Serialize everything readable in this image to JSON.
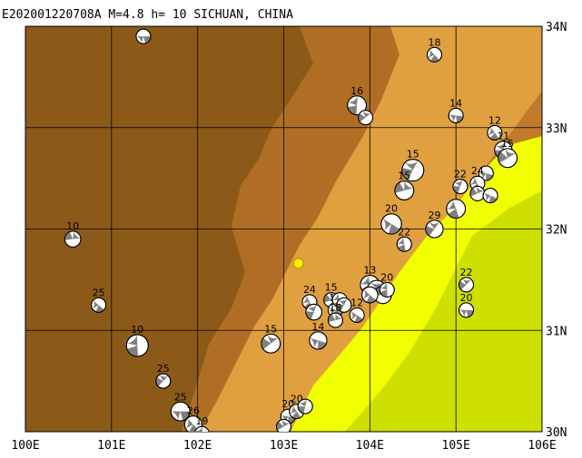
{
  "map": {
    "title": "E202001220708A M=4.8 h= 10 SICHUAN, CHINA",
    "lon_range": [
      100,
      106
    ],
    "lat_range": [
      30,
      34
    ],
    "x_ticks": [
      {
        "lon": 100,
        "label": "100E"
      },
      {
        "lon": 101,
        "label": "101E"
      },
      {
        "lon": 102,
        "label": "102E"
      },
      {
        "lon": 103,
        "label": "103E"
      },
      {
        "lon": 104,
        "label": "104E"
      },
      {
        "lon": 105,
        "label": "105E"
      },
      {
        "lon": 106,
        "label": "106E"
      }
    ],
    "y_ticks": [
      {
        "lat": 34,
        "label": "34N"
      },
      {
        "lat": 33,
        "label": "33N"
      },
      {
        "lat": 32,
        "label": "32N"
      },
      {
        "lat": 31,
        "label": "31N"
      },
      {
        "lat": 30,
        "label": "30N"
      }
    ],
    "colors": {
      "dark_terrain": "#8c5a18",
      "mid_terrain": "#c07a2a",
      "light_terrain": "#e0a040",
      "plain": "#f2ff00",
      "basin": "#cde000",
      "event_marker": "#ffee00",
      "mechanism_fill": "#808080"
    },
    "epicenter": {
      "lon": 103.17,
      "lat": 31.66
    },
    "mechanisms": [
      {
        "lon": 101.37,
        "lat": 33.9,
        "depth": "",
        "size": 1
      },
      {
        "lon": 104.75,
        "lat": 33.72,
        "depth": "18",
        "size": 1
      },
      {
        "lon": 103.85,
        "lat": 33.22,
        "depth": "16",
        "size": 1.3
      },
      {
        "lon": 103.95,
        "lat": 33.1,
        "depth": "",
        "size": 1
      },
      {
        "lon": 105.0,
        "lat": 33.12,
        "depth": "14",
        "size": 1
      },
      {
        "lon": 105.45,
        "lat": 32.95,
        "depth": "12",
        "size": 1
      },
      {
        "lon": 105.55,
        "lat": 32.78,
        "depth": "11",
        "size": 1.2
      },
      {
        "lon": 105.6,
        "lat": 32.7,
        "depth": "15",
        "size": 1.3
      },
      {
        "lon": 105.35,
        "lat": 32.55,
        "depth": "",
        "size": 1
      },
      {
        "lon": 105.25,
        "lat": 32.45,
        "depth": "24",
        "size": 1
      },
      {
        "lon": 105.05,
        "lat": 32.42,
        "depth": "22",
        "size": 1
      },
      {
        "lon": 105.25,
        "lat": 32.35,
        "depth": "",
        "size": 1
      },
      {
        "lon": 105.4,
        "lat": 32.33,
        "depth": "",
        "size": 1
      },
      {
        "lon": 105.0,
        "lat": 32.2,
        "depth": "",
        "size": 1.3
      },
      {
        "lon": 104.5,
        "lat": 32.58,
        "depth": "15",
        "size": 1.5
      },
      {
        "lon": 104.4,
        "lat": 32.38,
        "depth": "15",
        "size": 1.3
      },
      {
        "lon": 104.25,
        "lat": 32.05,
        "depth": "20",
        "size": 1.4
      },
      {
        "lon": 104.4,
        "lat": 31.85,
        "depth": "22",
        "size": 1
      },
      {
        "lon": 104.75,
        "lat": 32.0,
        "depth": "29",
        "size": 1.2
      },
      {
        "lon": 100.55,
        "lat": 31.9,
        "depth": "10",
        "size": 1.1
      },
      {
        "lon": 100.85,
        "lat": 31.25,
        "depth": "25",
        "size": 1
      },
      {
        "lon": 101.3,
        "lat": 30.85,
        "depth": "10",
        "size": 1.5
      },
      {
        "lon": 101.6,
        "lat": 30.5,
        "depth": "25",
        "size": 1
      },
      {
        "lon": 101.8,
        "lat": 30.2,
        "depth": "25",
        "size": 1.3
      },
      {
        "lon": 101.95,
        "lat": 30.07,
        "depth": "26",
        "size": 1.2
      },
      {
        "lon": 102.05,
        "lat": 29.98,
        "depth": "19",
        "size": 1
      },
      {
        "lon": 102.85,
        "lat": 30.87,
        "depth": "15",
        "size": 1.3
      },
      {
        "lon": 103.05,
        "lat": 30.15,
        "depth": "20",
        "size": 1
      },
      {
        "lon": 103.15,
        "lat": 30.2,
        "depth": "20",
        "size": 1
      },
      {
        "lon": 103.25,
        "lat": 30.25,
        "depth": "",
        "size": 1
      },
      {
        "lon": 103.0,
        "lat": 30.05,
        "depth": "",
        "size": 1
      },
      {
        "lon": 103.4,
        "lat": 30.9,
        "depth": "14",
        "size": 1.2
      },
      {
        "lon": 103.3,
        "lat": 31.28,
        "depth": "24",
        "size": 1
      },
      {
        "lon": 103.35,
        "lat": 31.18,
        "depth": "",
        "size": 1.1
      },
      {
        "lon": 103.55,
        "lat": 31.3,
        "depth": "15",
        "size": 1
      },
      {
        "lon": 103.6,
        "lat": 31.2,
        "depth": "15",
        "size": 1
      },
      {
        "lon": 103.65,
        "lat": 31.3,
        "depth": "",
        "size": 1
      },
      {
        "lon": 103.7,
        "lat": 31.25,
        "depth": "",
        "size": 1
      },
      {
        "lon": 103.6,
        "lat": 31.1,
        "depth": "18",
        "size": 1
      },
      {
        "lon": 103.85,
        "lat": 31.15,
        "depth": "12",
        "size": 1
      },
      {
        "lon": 104.0,
        "lat": 31.45,
        "depth": "13",
        "size": 1.3
      },
      {
        "lon": 104.08,
        "lat": 31.4,
        "depth": "",
        "size": 1.3
      },
      {
        "lon": 104.15,
        "lat": 31.35,
        "depth": "",
        "size": 1.2
      },
      {
        "lon": 104.0,
        "lat": 31.35,
        "depth": "",
        "size": 1.1
      },
      {
        "lon": 104.2,
        "lat": 31.4,
        "depth": "20",
        "size": 1
      },
      {
        "lon": 105.12,
        "lat": 31.45,
        "depth": "22",
        "size": 1
      },
      {
        "lon": 105.12,
        "lat": 31.2,
        "depth": "20",
        "size": 1
      }
    ]
  }
}
